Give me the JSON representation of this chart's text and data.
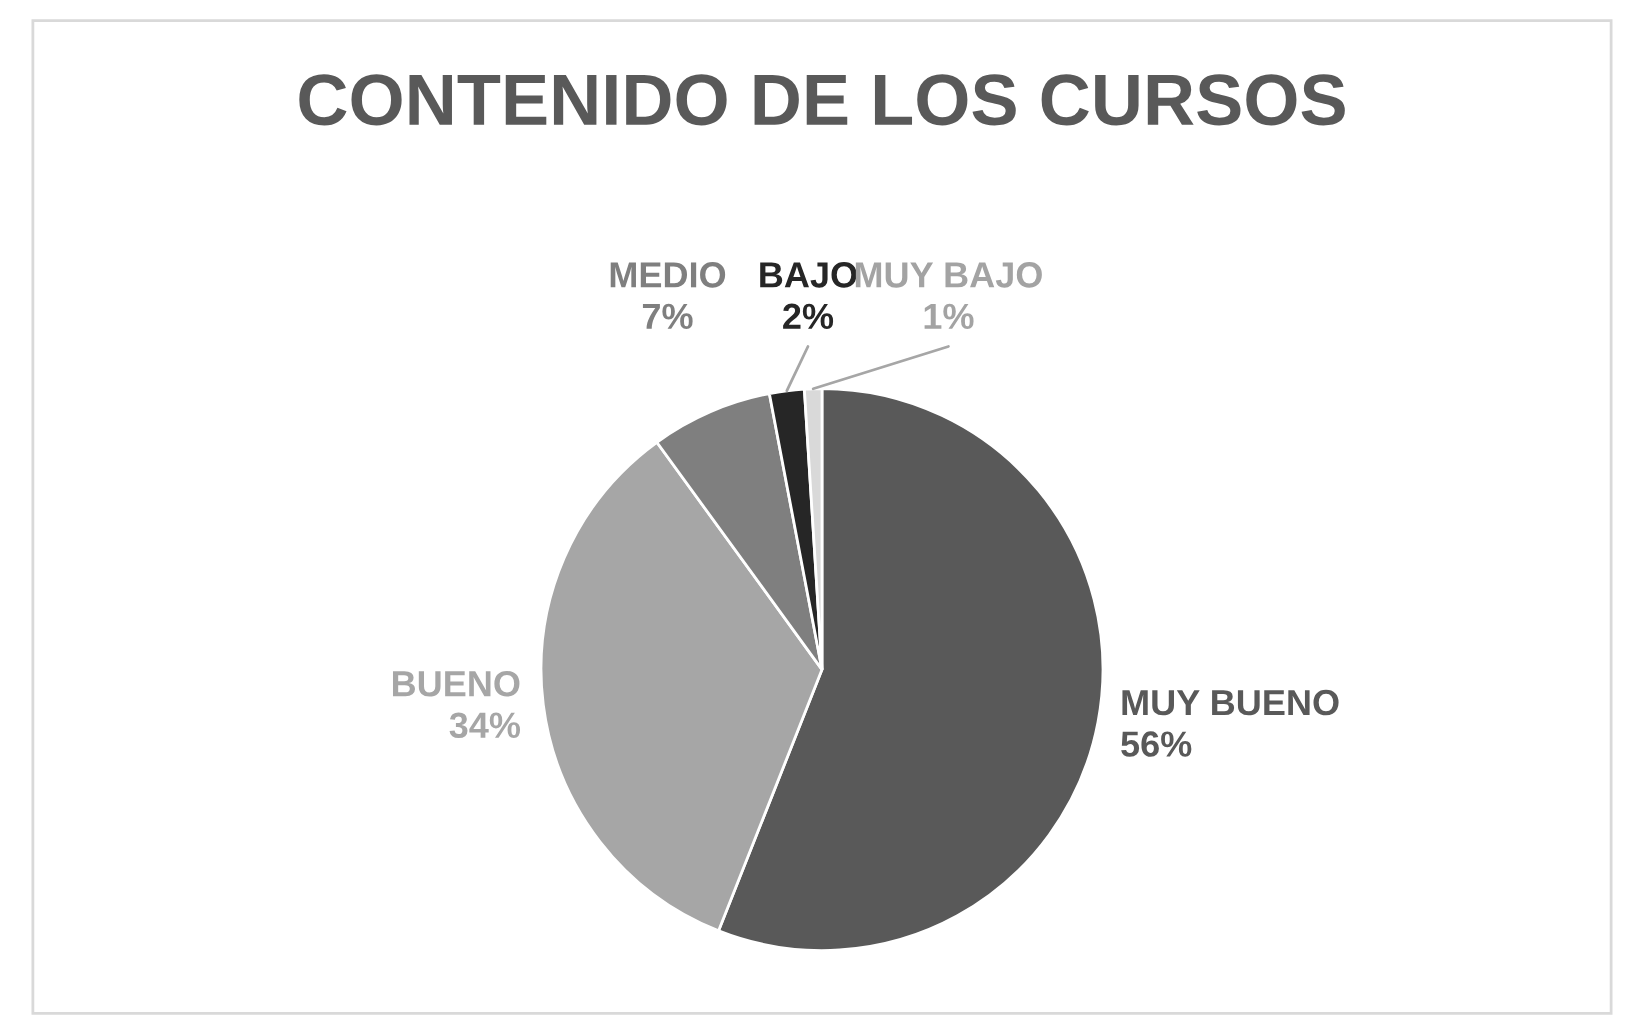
{
  "chart_data": {
    "type": "pie",
    "title": "CONTENIDO DE LOS CURSOS",
    "categories": [
      "MUY BUENO",
      "BUENO",
      "MEDIO",
      "BAJO",
      "MUY BAJO"
    ],
    "values": [
      56,
      34,
      7,
      2,
      1
    ],
    "value_labels": [
      "56%",
      "34%",
      "7%",
      "2%",
      "1%"
    ],
    "colors": [
      "#595959",
      "#a6a6a6",
      "#7f7f7f",
      "#262626",
      "#d9d9d9"
    ]
  }
}
